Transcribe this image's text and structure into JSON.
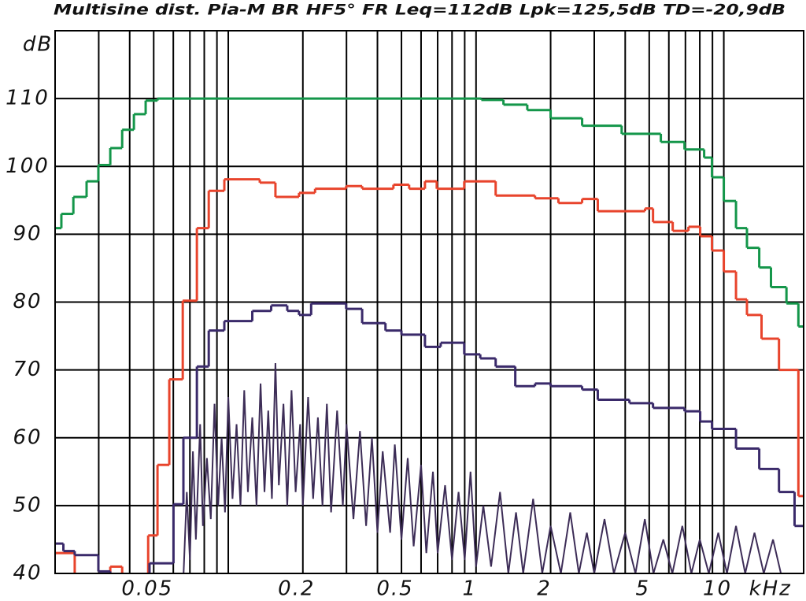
{
  "chart_data": {
    "type": "line",
    "title": "Multisine dist. Pia-M BR HF5° FR Leq=112dB Lpk=125,5dB  TD=-20,9dB",
    "ylabel": "dB",
    "xlabel": "kHz",
    "xscale": "log",
    "grid": true,
    "xlim": [
      0.02,
      21
    ],
    "ylim": [
      40,
      120
    ],
    "yticks": [
      40,
      50,
      60,
      70,
      80,
      90,
      100,
      110
    ],
    "xticks": [
      0.05,
      0.2,
      0.5,
      1,
      2,
      5,
      10
    ],
    "xminor": [
      0.03,
      0.04,
      0.06,
      0.07,
      0.08,
      0.09,
      0.1,
      0.3,
      0.4,
      0.6,
      0.7,
      0.8,
      0.9,
      3,
      4,
      6,
      7,
      8,
      9
    ],
    "series": [
      {
        "color": "#14964a",
        "step": "post",
        "x": [
          0.02,
          0.0212,
          0.0237,
          0.0268,
          0.0299,
          0.0334,
          0.0373,
          0.0416,
          0.0464,
          0.0518,
          1.05,
          1.29,
          1.61,
          2.0,
          2.68,
          3.87,
          5.57,
          6.94,
          8.33,
          8.96,
          10,
          11.2,
          12.4,
          13.9,
          15.5,
          17.9,
          20
        ],
        "values": [
          90.9,
          93,
          95.5,
          97.8,
          100.2,
          102.7,
          105.4,
          107.7,
          109.7,
          110,
          109.8,
          109.1,
          108.3,
          107.1,
          106,
          104.8,
          103.6,
          102.5,
          101.3,
          98.4,
          94.9,
          90.9,
          88,
          85.1,
          82.2,
          79.8,
          76.4
        ]
      },
      {
        "color": "#e8442c",
        "step": "post",
        "x": [
          0.02,
          0.024,
          0.0334,
          0.0373,
          0.0475,
          0.0518,
          0.0578,
          0.0655,
          0.0747,
          0.0834,
          0.0964,
          0.134,
          0.155,
          0.193,
          0.224,
          0.299,
          0.347,
          0.464,
          0.537,
          0.622,
          0.694,
          0.896,
          1.2,
          1.73,
          2.15,
          2.68,
          3.1,
          4.81,
          5.18,
          6.22,
          7.2,
          8.03,
          8.96,
          10,
          11.2,
          12.4,
          14.2,
          16.7,
          20
        ],
        "values": [
          43,
          39,
          41,
          39,
          45.6,
          56,
          68.6,
          80.2,
          90.9,
          96.4,
          98.1,
          97.6,
          95.5,
          96.1,
          96.7,
          97.1,
          96.7,
          97.3,
          96.7,
          97.8,
          96.7,
          97.8,
          95.7,
          95.3,
          94.6,
          95.2,
          93.4,
          93.8,
          91.8,
          90.5,
          91.1,
          89.7,
          87.6,
          84.5,
          80.4,
          78.1,
          74.6,
          70,
          51.4
        ]
      },
      {
        "color": "#3a2a6a",
        "step": "post",
        "x": [
          0.02,
          0.0216,
          0.024,
          0.0299,
          0.0334,
          0.0481,
          0.0601,
          0.0659,
          0.0747,
          0.0834,
          0.0964,
          0.125,
          0.149,
          0.173,
          0.193,
          0.216,
          0.299,
          0.347,
          0.431,
          0.5,
          0.622,
          0.72,
          0.896,
          1.04,
          1.2,
          1.44,
          1.73,
          2.0,
          2.68,
          3.1,
          4.16,
          5.18,
          6.94,
          8.03,
          8.96,
          11.2,
          13.9,
          16.7,
          19.3
        ],
        "values": [
          44.4,
          43.3,
          42.7,
          40.3,
          39,
          41.5,
          50.2,
          60,
          70.5,
          75.8,
          77.2,
          78.7,
          79.5,
          78.7,
          78.1,
          79.8,
          79,
          76.9,
          75.8,
          75.2,
          73.4,
          74,
          72.3,
          71.7,
          70.5,
          67.6,
          68,
          67.6,
          67.1,
          65.6,
          65.1,
          64.4,
          63.9,
          62.4,
          61.3,
          58.4,
          55.4,
          52,
          47
        ]
      },
      {
        "color": "#3d2d57",
        "x": [
          0.066,
          0.068,
          0.07,
          0.072,
          0.074,
          0.077,
          0.079,
          0.082,
          0.085,
          0.088,
          0.091,
          0.094,
          0.097,
          0.1,
          0.104,
          0.108,
          0.112,
          0.116,
          0.12,
          0.125,
          0.13,
          0.135,
          0.14,
          0.145,
          0.15,
          0.155,
          0.16,
          0.167,
          0.173,
          0.18,
          0.187,
          0.195,
          0.2,
          0.21,
          0.22,
          0.23,
          0.24,
          0.25,
          0.26,
          0.275,
          0.29,
          0.3,
          0.32,
          0.34,
          0.36,
          0.38,
          0.4,
          0.42,
          0.45,
          0.47,
          0.5,
          0.53,
          0.56,
          0.6,
          0.63,
          0.67,
          0.7,
          0.75,
          0.8,
          0.85,
          0.9,
          0.95,
          1.0,
          1.07,
          1.15,
          1.25,
          1.35,
          1.45,
          1.55,
          1.7,
          1.85,
          2.0,
          2.2,
          2.4,
          2.6,
          2.8,
          3.0,
          3.3,
          3.6,
          4.0,
          4.4,
          4.8,
          5.2,
          5.7,
          6.2,
          6.8,
          7.4,
          8.0,
          8.7,
          9.5,
          10.3,
          11.2,
          12.2,
          13.3,
          14.5,
          15.8,
          17
        ],
        "values": [
          40,
          52,
          42,
          58,
          45,
          62,
          47,
          57,
          48,
          65,
          50,
          60,
          49,
          66,
          51,
          62,
          50,
          67,
          52,
          63,
          50,
          68,
          52,
          64,
          51,
          71,
          53,
          65,
          50,
          67,
          52,
          62,
          50,
          66,
          51,
          63,
          50,
          65,
          49,
          64,
          50,
          62,
          48,
          61,
          47,
          60,
          46,
          58,
          46,
          59,
          45,
          57,
          44,
          56,
          43,
          55,
          43,
          53,
          42,
          52,
          42,
          55,
          41,
          50,
          41,
          52,
          40,
          49,
          40,
          51,
          40,
          47,
          40,
          49,
          40,
          46,
          40,
          48,
          40,
          46,
          40,
          48,
          40,
          45,
          40,
          47,
          40,
          45,
          40,
          46,
          40,
          47,
          40,
          46,
          40,
          45,
          40
        ]
      }
    ]
  }
}
